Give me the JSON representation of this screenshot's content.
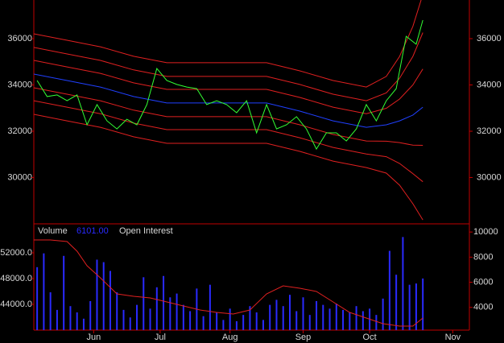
{
  "chart_data": [
    {
      "type": "line",
      "xlim": [
        0,
        131
      ],
      "ylim": [
        28000,
        37670
      ],
      "yticks": [
        30000,
        32000,
        34000,
        36000
      ],
      "series": [
        {
          "color": "#e02020",
          "x": [
            0,
            10,
            20,
            30,
            40,
            50,
            60,
            70,
            80,
            90,
            100,
            106,
            110,
            114,
            117
          ],
          "values": [
            36210,
            35930,
            35650,
            35240,
            34960,
            34960,
            34960,
            34960,
            34610,
            34190,
            33910,
            34370,
            35230,
            36530,
            37910
          ]
        },
        {
          "color": "#e02020",
          "x": [
            0,
            10,
            20,
            30,
            40,
            50,
            60,
            70,
            80,
            90,
            100,
            106,
            110,
            114,
            117
          ],
          "values": [
            35620,
            35340,
            35060,
            34650,
            34370,
            34370,
            34370,
            34370,
            34020,
            33600,
            33320,
            33660,
            34290,
            35230,
            36260
          ]
        },
        {
          "color": "#e02020",
          "x": [
            0,
            10,
            20,
            30,
            40,
            50,
            60,
            70,
            80,
            90,
            100,
            106,
            110,
            114,
            117
          ],
          "values": [
            35060,
            34780,
            34500,
            34090,
            33810,
            33810,
            33810,
            33810,
            33460,
            33040,
            32760,
            32990,
            33390,
            34000,
            34690
          ]
        },
        {
          "color": "#2040ff",
          "x": [
            0,
            10,
            20,
            30,
            40,
            50,
            60,
            70,
            80,
            90,
            100,
            106,
            110,
            114,
            117
          ],
          "values": [
            34470,
            34190,
            33910,
            33500,
            33220,
            33220,
            33220,
            33220,
            32870,
            32450,
            32170,
            32280,
            32450,
            32700,
            33040
          ]
        },
        {
          "color": "#e02020",
          "x": [
            0,
            10,
            20,
            30,
            40,
            50,
            60,
            70,
            80,
            90,
            100,
            106,
            110,
            114,
            117
          ],
          "values": [
            33880,
            33600,
            33320,
            32910,
            32630,
            32630,
            32630,
            32630,
            32280,
            31860,
            31580,
            31570,
            31510,
            31400,
            31390
          ]
        },
        {
          "color": "#e02020",
          "x": [
            0,
            10,
            20,
            30,
            40,
            50,
            60,
            70,
            80,
            90,
            100,
            106,
            110,
            114,
            117
          ],
          "values": [
            33320,
            33040,
            32760,
            32350,
            32070,
            32070,
            32070,
            32070,
            31720,
            31300,
            31020,
            30900,
            30610,
            30170,
            29820
          ]
        },
        {
          "color": "#e02020",
          "x": [
            0,
            10,
            20,
            30,
            40,
            50,
            60,
            70,
            80,
            90,
            100,
            106,
            110,
            114,
            117
          ],
          "values": [
            32730,
            32450,
            32170,
            31760,
            31480,
            31480,
            31480,
            31480,
            31130,
            30710,
            30430,
            30190,
            29670,
            28870,
            28170
          ]
        },
        {
          "color": "#33ff33",
          "x": [
            1,
            4,
            7,
            10,
            13,
            16,
            19,
            22,
            25,
            28,
            31,
            34,
            37,
            40,
            43,
            46,
            49,
            52,
            55,
            58,
            61,
            64,
            67,
            70,
            73,
            76,
            79,
            82,
            85,
            88,
            91,
            94,
            97,
            100,
            103,
            106,
            109,
            112,
            115,
            117
          ],
          "values": [
            34190,
            33500,
            33570,
            33320,
            33570,
            32280,
            33150,
            32450,
            32100,
            32520,
            32280,
            33150,
            34710,
            34190,
            34020,
            33910,
            33840,
            33150,
            33320,
            33150,
            32800,
            33320,
            31930,
            33150,
            32100,
            32280,
            32630,
            32100,
            31230,
            31930,
            31930,
            31580,
            32100,
            33150,
            32450,
            33320,
            33840,
            36100,
            35760,
            36800
          ]
        }
      ]
    },
    {
      "type": "bar",
      "xlim": [
        0,
        131
      ],
      "xticks": [
        {
          "value": 18,
          "label": "Jun"
        },
        {
          "value": 38,
          "label": "Jul"
        },
        {
          "value": 59,
          "label": "Aug"
        },
        {
          "value": 81,
          "label": "Sep"
        },
        {
          "value": 101,
          "label": "Oct"
        },
        {
          "value": 126,
          "label": "Nov"
        }
      ],
      "ylim": [
        40000,
        56500
      ],
      "yticks": [
        {
          "value": 44000,
          "label": "44000.0"
        },
        {
          "value": 48000,
          "label": "48000.0"
        },
        {
          "value": 52000,
          "label": "52000.0"
        }
      ],
      "y2lim": [
        2190,
        10650
      ],
      "y2ticks": [
        4000,
        6000,
        8000,
        10000
      ],
      "volume_readout": "6101.00",
      "series": [
        {
          "name": "Volume",
          "color": "#2a2aff",
          "axis": "y2",
          "x": [
            1,
            3,
            5,
            7,
            9,
            11,
            13,
            15,
            17,
            19,
            21,
            23,
            25,
            27,
            29,
            31,
            33,
            35,
            37,
            39,
            41,
            43,
            45,
            47,
            49,
            51,
            53,
            55,
            57,
            59,
            61,
            63,
            65,
            67,
            69,
            71,
            73,
            75,
            77,
            79,
            81,
            83,
            85,
            87,
            89,
            91,
            93,
            95,
            97,
            99,
            101,
            103,
            105,
            107,
            109,
            111,
            113,
            115,
            117
          ],
          "values": [
            7200,
            8300,
            5200,
            3800,
            8100,
            4100,
            3600,
            3100,
            4500,
            7800,
            7600,
            6900,
            5200,
            3800,
            3200,
            4200,
            6400,
            3900,
            5600,
            6500,
            4800,
            5100,
            4200,
            3700,
            5500,
            3300,
            5800,
            3600,
            3000,
            3900,
            2900,
            3400,
            4100,
            3600,
            3000,
            4200,
            4600,
            4100,
            5000,
            3700,
            4800,
            3400,
            4500,
            4200,
            3900,
            4300,
            3800,
            3600,
            4100,
            3700,
            3900,
            3400,
            4700,
            8500,
            6600,
            9600,
            5800,
            5900,
            6300
          ]
        },
        {
          "name": "Open Interest",
          "type": "line",
          "color": "#e02020",
          "x": [
            0,
            5,
            10,
            13,
            16,
            20,
            25,
            30,
            35,
            40,
            45,
            50,
            55,
            60,
            65,
            70,
            75,
            80,
            85,
            90,
            95,
            100,
            105,
            110,
            114,
            117
          ],
          "values": [
            54000,
            54000,
            53750,
            52250,
            50000,
            48130,
            45630,
            45250,
            45000,
            44380,
            43750,
            43130,
            42750,
            42500,
            43130,
            45630,
            46880,
            46500,
            46000,
            44380,
            42750,
            41880,
            41000,
            40630,
            40630,
            41880
          ]
        }
      ]
    }
  ]
}
